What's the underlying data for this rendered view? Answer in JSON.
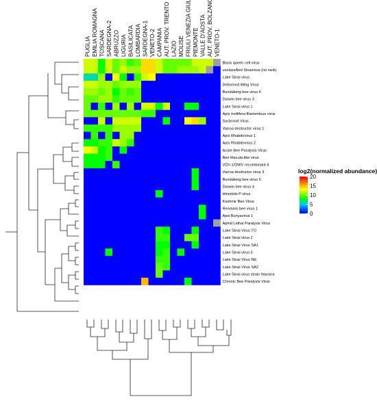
{
  "chart_data": {
    "type": "heatmap",
    "columns": [
      "PUGLIA",
      "EMILIA ROMAGNA",
      "TOSCANA",
      "SARDEGNA-2",
      "ABRUZZO",
      "LIGURIA",
      "BASILICATA",
      "LOMBARDIA",
      "SARDEGNA-1",
      "VENETO-2",
      "CAMPANIA",
      "AUT. PROV. TRENTO",
      "LAZIO",
      "MOLISE",
      "FRIULI VENEZIA GIULIA",
      "PIEMONTE",
      "VALLE D'AOSTA",
      "AUT. PROV. BOLZANO",
      "VENETO-1"
    ],
    "rows": [
      "Black queen cell virus",
      "unclassified Sinaivirus (no rank)",
      "Lake Sinai virus",
      "Deformed Wing Virus",
      "Bundaberg bee virus 6",
      "Darwin bee virus 3",
      "Lake Sinai virus 1",
      "Apis mellifera filamentous virus",
      "Sacbrood Virus",
      "Varroa destructor virus 1",
      "Apis Rhabdovirus 1",
      "Apis Rhabdovirus 2",
      "Acute Bee Paralysis Virus",
      "Bee Macula-like virus",
      "VDV-1/DWV recombinant 4",
      "Varroa destructor virus 3",
      "Bundaberg bee virus 5",
      "Darwin bee virus 4",
      "Himetobi P virus",
      "Kashmir Bee Virus",
      "Renmark bee virus 1",
      "Apis Bunyavirus 1",
      "Aphid Lethal Paralysis Virus",
      "Lake Sinai Virus TO",
      "Lake Sinai virus 2",
      "Lake Sinai Virus SA1",
      "Lake Sinai virus 3",
      "Lake Sinai Virus NE",
      "Lake Sinai Virus SA2",
      "Lake Sinai virus strain Navarra",
      "Chronic Bee Paralysis Virus"
    ],
    "values": [
      [
        12,
        12,
        8,
        12,
        10,
        11,
        9,
        10,
        14,
        14,
        12,
        10,
        10,
        10,
        10,
        12,
        12,
        12,
        -1
      ],
      [
        12,
        12,
        8,
        12,
        10,
        12,
        11,
        11,
        14,
        14,
        12,
        10,
        10,
        11,
        11,
        11,
        12,
        -1,
        0
      ],
      [
        6,
        6,
        11,
        0,
        13,
        8,
        0,
        9,
        12,
        13,
        0,
        0,
        0,
        0,
        0,
        0,
        0,
        0,
        0
      ],
      [
        12,
        12,
        11,
        11,
        10,
        11,
        11,
        11,
        0,
        0,
        0,
        0,
        0,
        0,
        0,
        0,
        0,
        0,
        0
      ],
      [
        11,
        11,
        10,
        11,
        8,
        10,
        9,
        10,
        0,
        0,
        0,
        0,
        0,
        0,
        0,
        0,
        0,
        0,
        0
      ],
      [
        10,
        10,
        11,
        11,
        9,
        10,
        10,
        10,
        0,
        0,
        0,
        0,
        0,
        0,
        0,
        0,
        0,
        0,
        0
      ],
      [
        10,
        0,
        9,
        0,
        11,
        0,
        11,
        0,
        12,
        12,
        8,
        12,
        0,
        0,
        8,
        8,
        0,
        0,
        0
      ],
      [
        10,
        10,
        10,
        10,
        10,
        10,
        10,
        10,
        9,
        9,
        0,
        0,
        0,
        0,
        0,
        0,
        0,
        0,
        0
      ],
      [
        0,
        0,
        12,
        0,
        12,
        12,
        12,
        12,
        0,
        0,
        0,
        8,
        0,
        0,
        13,
        14,
        11,
        0,
        0
      ],
      [
        9,
        9,
        9,
        9,
        11,
        11,
        11,
        11,
        0,
        0,
        0,
        0,
        0,
        0,
        0,
        0,
        0,
        0,
        0
      ],
      [
        0,
        9,
        0,
        9,
        0,
        11,
        11,
        0,
        0,
        0,
        0,
        0,
        0,
        0,
        0,
        0,
        0,
        0,
        0
      ],
      [
        8,
        8,
        9,
        9,
        12,
        11,
        9,
        0,
        0,
        0,
        0,
        0,
        0,
        0,
        0,
        0,
        0,
        0,
        0
      ],
      [
        13,
        12,
        8,
        9,
        0,
        8,
        0,
        0,
        0,
        0,
        0,
        0,
        0,
        0,
        0,
        0,
        0,
        0,
        0
      ],
      [
        8,
        8,
        8,
        9,
        0,
        0,
        0,
        0,
        0,
        0,
        0,
        0,
        0,
        0,
        0,
        0,
        0,
        0,
        0
      ],
      [
        8,
        8,
        8,
        0,
        9,
        0,
        0,
        0,
        0,
        0,
        0,
        0,
        0,
        0,
        0,
        0,
        0,
        0,
        0
      ],
      [
        0,
        0,
        0,
        0,
        0,
        0,
        0,
        0,
        0,
        0,
        0,
        0,
        0,
        0,
        0,
        8,
        0,
        0,
        0
      ],
      [
        0,
        0,
        0,
        0,
        0,
        0,
        0,
        0,
        0,
        0,
        0,
        0,
        0,
        0,
        0,
        8,
        0,
        0,
        0
      ],
      [
        0,
        0,
        0,
        0,
        0,
        0,
        0,
        0,
        0,
        0,
        0,
        0,
        0,
        0,
        0,
        8,
        0,
        0,
        0
      ],
      [
        0,
        0,
        0,
        0,
        0,
        0,
        0,
        0,
        0,
        0,
        8,
        0,
        0,
        0,
        0,
        0,
        0,
        0,
        0
      ],
      [
        0,
        0,
        0,
        0,
        0,
        0,
        0,
        0,
        0,
        0,
        0,
        0,
        0,
        0,
        0,
        0,
        0,
        0,
        0
      ],
      [
        0,
        0,
        0,
        0,
        0,
        0,
        0,
        0,
        0,
        0,
        0,
        0,
        0,
        0,
        0,
        0,
        8,
        0,
        0
      ],
      [
        0,
        0,
        0,
        0,
        0,
        0,
        0,
        0,
        0,
        0,
        0,
        0,
        0,
        0,
        0,
        0,
        8,
        0,
        0
      ],
      [
        0,
        0,
        0,
        0,
        0,
        0,
        0,
        0,
        0,
        0,
        0,
        0,
        0,
        0,
        0,
        0,
        0,
        0,
        -1
      ],
      [
        0,
        0,
        0,
        0,
        0,
        0,
        0,
        0,
        0,
        0,
        9,
        8,
        0,
        0,
        0,
        8,
        0,
        0,
        0
      ],
      [
        0,
        0,
        0,
        0,
        0,
        0,
        0,
        0,
        0,
        0,
        9,
        9,
        0,
        0,
        10,
        10,
        0,
        0,
        0
      ],
      [
        0,
        0,
        0,
        0,
        0,
        0,
        0,
        0,
        0,
        0,
        8,
        8,
        0,
        0,
        0,
        8,
        0,
        0,
        0
      ],
      [
        0,
        0,
        0,
        8,
        0,
        0,
        0,
        0,
        0,
        0,
        8,
        9,
        0,
        8,
        0,
        0,
        0,
        0,
        0
      ],
      [
        0,
        0,
        0,
        0,
        0,
        0,
        0,
        0,
        0,
        0,
        9,
        9,
        0,
        0,
        0,
        0,
        0,
        0,
        0
      ],
      [
        0,
        0,
        0,
        0,
        0,
        0,
        0,
        0,
        0,
        0,
        10,
        9,
        0,
        0,
        0,
        0,
        0,
        0,
        0
      ],
      [
        0,
        0,
        0,
        0,
        0,
        0,
        0,
        0,
        0,
        0,
        10,
        0,
        0,
        0,
        0,
        0,
        0,
        0,
        0
      ],
      [
        0,
        0,
        0,
        0,
        0,
        0,
        0,
        0,
        15,
        0,
        0,
        0,
        0,
        0,
        8,
        0,
        0,
        0,
        0
      ]
    ],
    "legend": {
      "title": "log2(normalized abundance)",
      "ticks": [
        20,
        15,
        10,
        5,
        0
      ],
      "range": [
        0,
        20
      ],
      "colors": [
        "#0000ff",
        "#00ff00",
        "#ffff00",
        "#ff0000"
      ]
    },
    "missing_color": "#a0a0a0",
    "row_dendrogram": true,
    "column_dendrogram": true,
    "legend_position": "right"
  }
}
